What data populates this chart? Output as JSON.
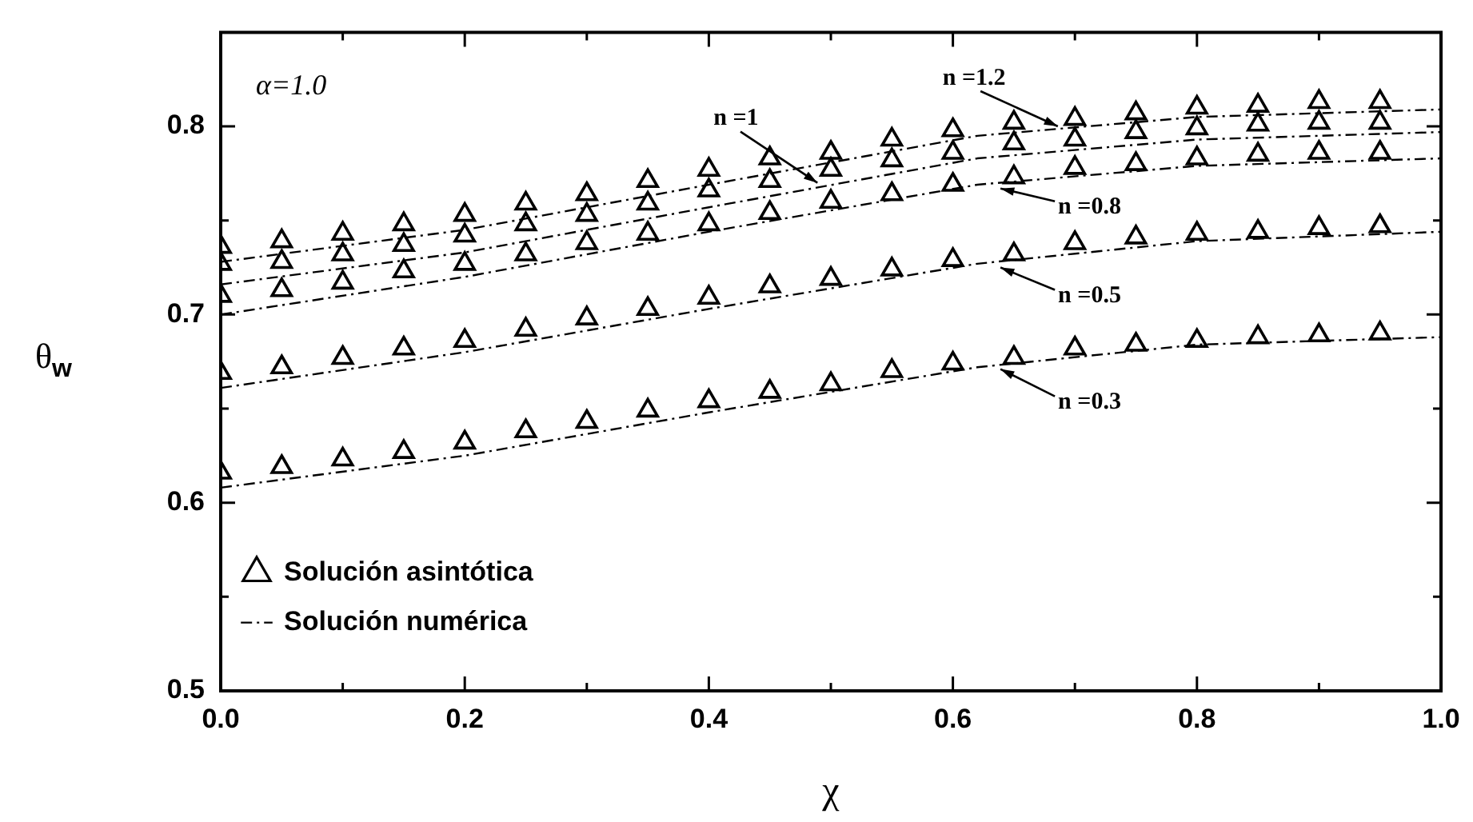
{
  "chart_data": {
    "type": "scatter",
    "xlabel": "χ",
    "ylabel": "θ$_{w}$",
    "x": [
      0,
      0.05,
      0.1,
      0.15,
      0.2,
      0.25,
      0.3,
      0.35,
      0.4,
      0.45,
      0.5,
      0.55,
      0.6,
      0.65,
      0.7,
      0.75,
      0.8,
      0.85,
      0.9,
      0.95
    ],
    "xlim": [
      0,
      1
    ],
    "ylim": [
      0.5,
      0.85
    ],
    "xticks": [
      {
        "value": 0,
        "label": "0.0"
      },
      {
        "value": 0.1,
        "label": null
      },
      {
        "value": 0.2,
        "label": "0.2"
      },
      {
        "value": 0.3,
        "label": null
      },
      {
        "value": 0.4,
        "label": "0.4"
      },
      {
        "value": 0.5,
        "label": null
      },
      {
        "value": 0.6,
        "label": "0.6"
      },
      {
        "value": 0.7,
        "label": null
      },
      {
        "value": 0.8,
        "label": "0.8"
      },
      {
        "value": 0.9,
        "label": null
      },
      {
        "value": 1,
        "label": "1.0"
      }
    ],
    "yticks": [
      0.5,
      {
        "value": 0.55,
        "label": null
      },
      0.6,
      {
        "value": 0.65,
        "label": null
      },
      0.7,
      {
        "value": 0.75,
        "label": null
      },
      0.8,
      {
        "value": 0.85,
        "label": null
      }
    ],
    "grid": false,
    "legend": "bottom left",
    "series": [
      {
        "name": "Solución asintótica",
        "color": "#000000",
        "marker": "triangle",
        "values": [
          0.616,
          0.619,
          0.623,
          0.627,
          0.632,
          0.638,
          0.643,
          0.649,
          0.654,
          0.659,
          0.663,
          0.67,
          0.674,
          0.677,
          0.682,
          0.684,
          0.686,
          0.688,
          0.689,
          0.69
        ]
      },
      {
        "type": "scatter",
        "color": "#000000",
        "marker": "triangle",
        "values": [
          0.669,
          0.672,
          0.677,
          0.682,
          0.686,
          0.692,
          0.698,
          0.703,
          0.709,
          0.715,
          0.719,
          0.724,
          0.729,
          0.732,
          0.738,
          0.741,
          0.743,
          0.744,
          0.746,
          0.747
        ]
      },
      {
        "type": "scatter",
        "color": "#000000",
        "marker": "triangle",
        "values": [
          0.71,
          0.713,
          0.717,
          0.723,
          0.727,
          0.732,
          0.738,
          0.743,
          0.748,
          0.754,
          0.76,
          0.764,
          0.769,
          0.773,
          0.778,
          0.78,
          0.783,
          0.785,
          0.786,
          0.786
        ]
      },
      {
        "type": "scatter",
        "color": "#000000",
        "marker": "triangle",
        "values": [
          0.727,
          0.728,
          0.732,
          0.737,
          0.742,
          0.748,
          0.753,
          0.759,
          0.766,
          0.771,
          0.777,
          0.782,
          0.786,
          0.791,
          0.793,
          0.797,
          0.799,
          0.801,
          0.802,
          0.802
        ]
      },
      {
        "type": "scatter",
        "color": "#000000",
        "marker": "triangle",
        "values": [
          0.736,
          0.739,
          0.743,
          0.748,
          0.753,
          0.759,
          0.764,
          0.771,
          0.777,
          0.783,
          0.786,
          0.793,
          0.798,
          0.802,
          0.804,
          0.807,
          0.81,
          0.811,
          0.813,
          0.813
        ]
      },
      {
        "type": "line",
        "name": "Solución numérica",
        "color": "#000000",
        "marker": "none",
        "line_style": "dashed",
        "x": [
          0,
          0.2,
          0.4,
          0.62,
          0.8,
          1
        ],
        "values": [
          0.608,
          0.625,
          0.648,
          0.672,
          0.684,
          0.688
        ]
      },
      {
        "type": "line",
        "color": "#000000",
        "marker": "none",
        "line_style": "dashed",
        "x": [
          0,
          0.2,
          0.4,
          0.62,
          0.8,
          1
        ],
        "values": [
          0.661,
          0.68,
          0.703,
          0.727,
          0.739,
          0.744
        ]
      },
      {
        "type": "line",
        "color": "#000000",
        "marker": "none",
        "line_style": "dashed",
        "x": [
          0,
          0.2,
          0.4,
          0.62,
          0.8,
          1
        ],
        "values": [
          0.7,
          0.72,
          0.744,
          0.769,
          0.779,
          0.783
        ]
      },
      {
        "type": "line",
        "color": "#000000",
        "marker": "none",
        "line_style": "dashed",
        "x": [
          0,
          0.2,
          0.4,
          0.62,
          0.8,
          1
        ],
        "values": [
          0.716,
          0.733,
          0.757,
          0.783,
          0.793,
          0.797
        ]
      },
      {
        "type": "line",
        "color": "#000000",
        "marker": "none",
        "line_style": "dashed",
        "x": [
          0,
          0.2,
          0.4,
          0.62,
          0.8,
          1
        ],
        "values": [
          0.728,
          0.745,
          0.769,
          0.795,
          0.805,
          0.809
        ]
      }
    ],
    "annotations": [
      "α=1.0",
      {
        "text": "n =1",
        "x": 0.489,
        "y": 0.77
      },
      {
        "text": "n =1.2",
        "x": 0.686,
        "y": 0.8
      },
      {
        "text": "n =0.8",
        "x": 0.639,
        "y": 0.767
      },
      {
        "text": "n =0.5",
        "x": 0.639,
        "y": 0.725
      },
      {
        "text": "n =0.3",
        "x": 0.639,
        "y": 0.671
      }
    ]
  }
}
